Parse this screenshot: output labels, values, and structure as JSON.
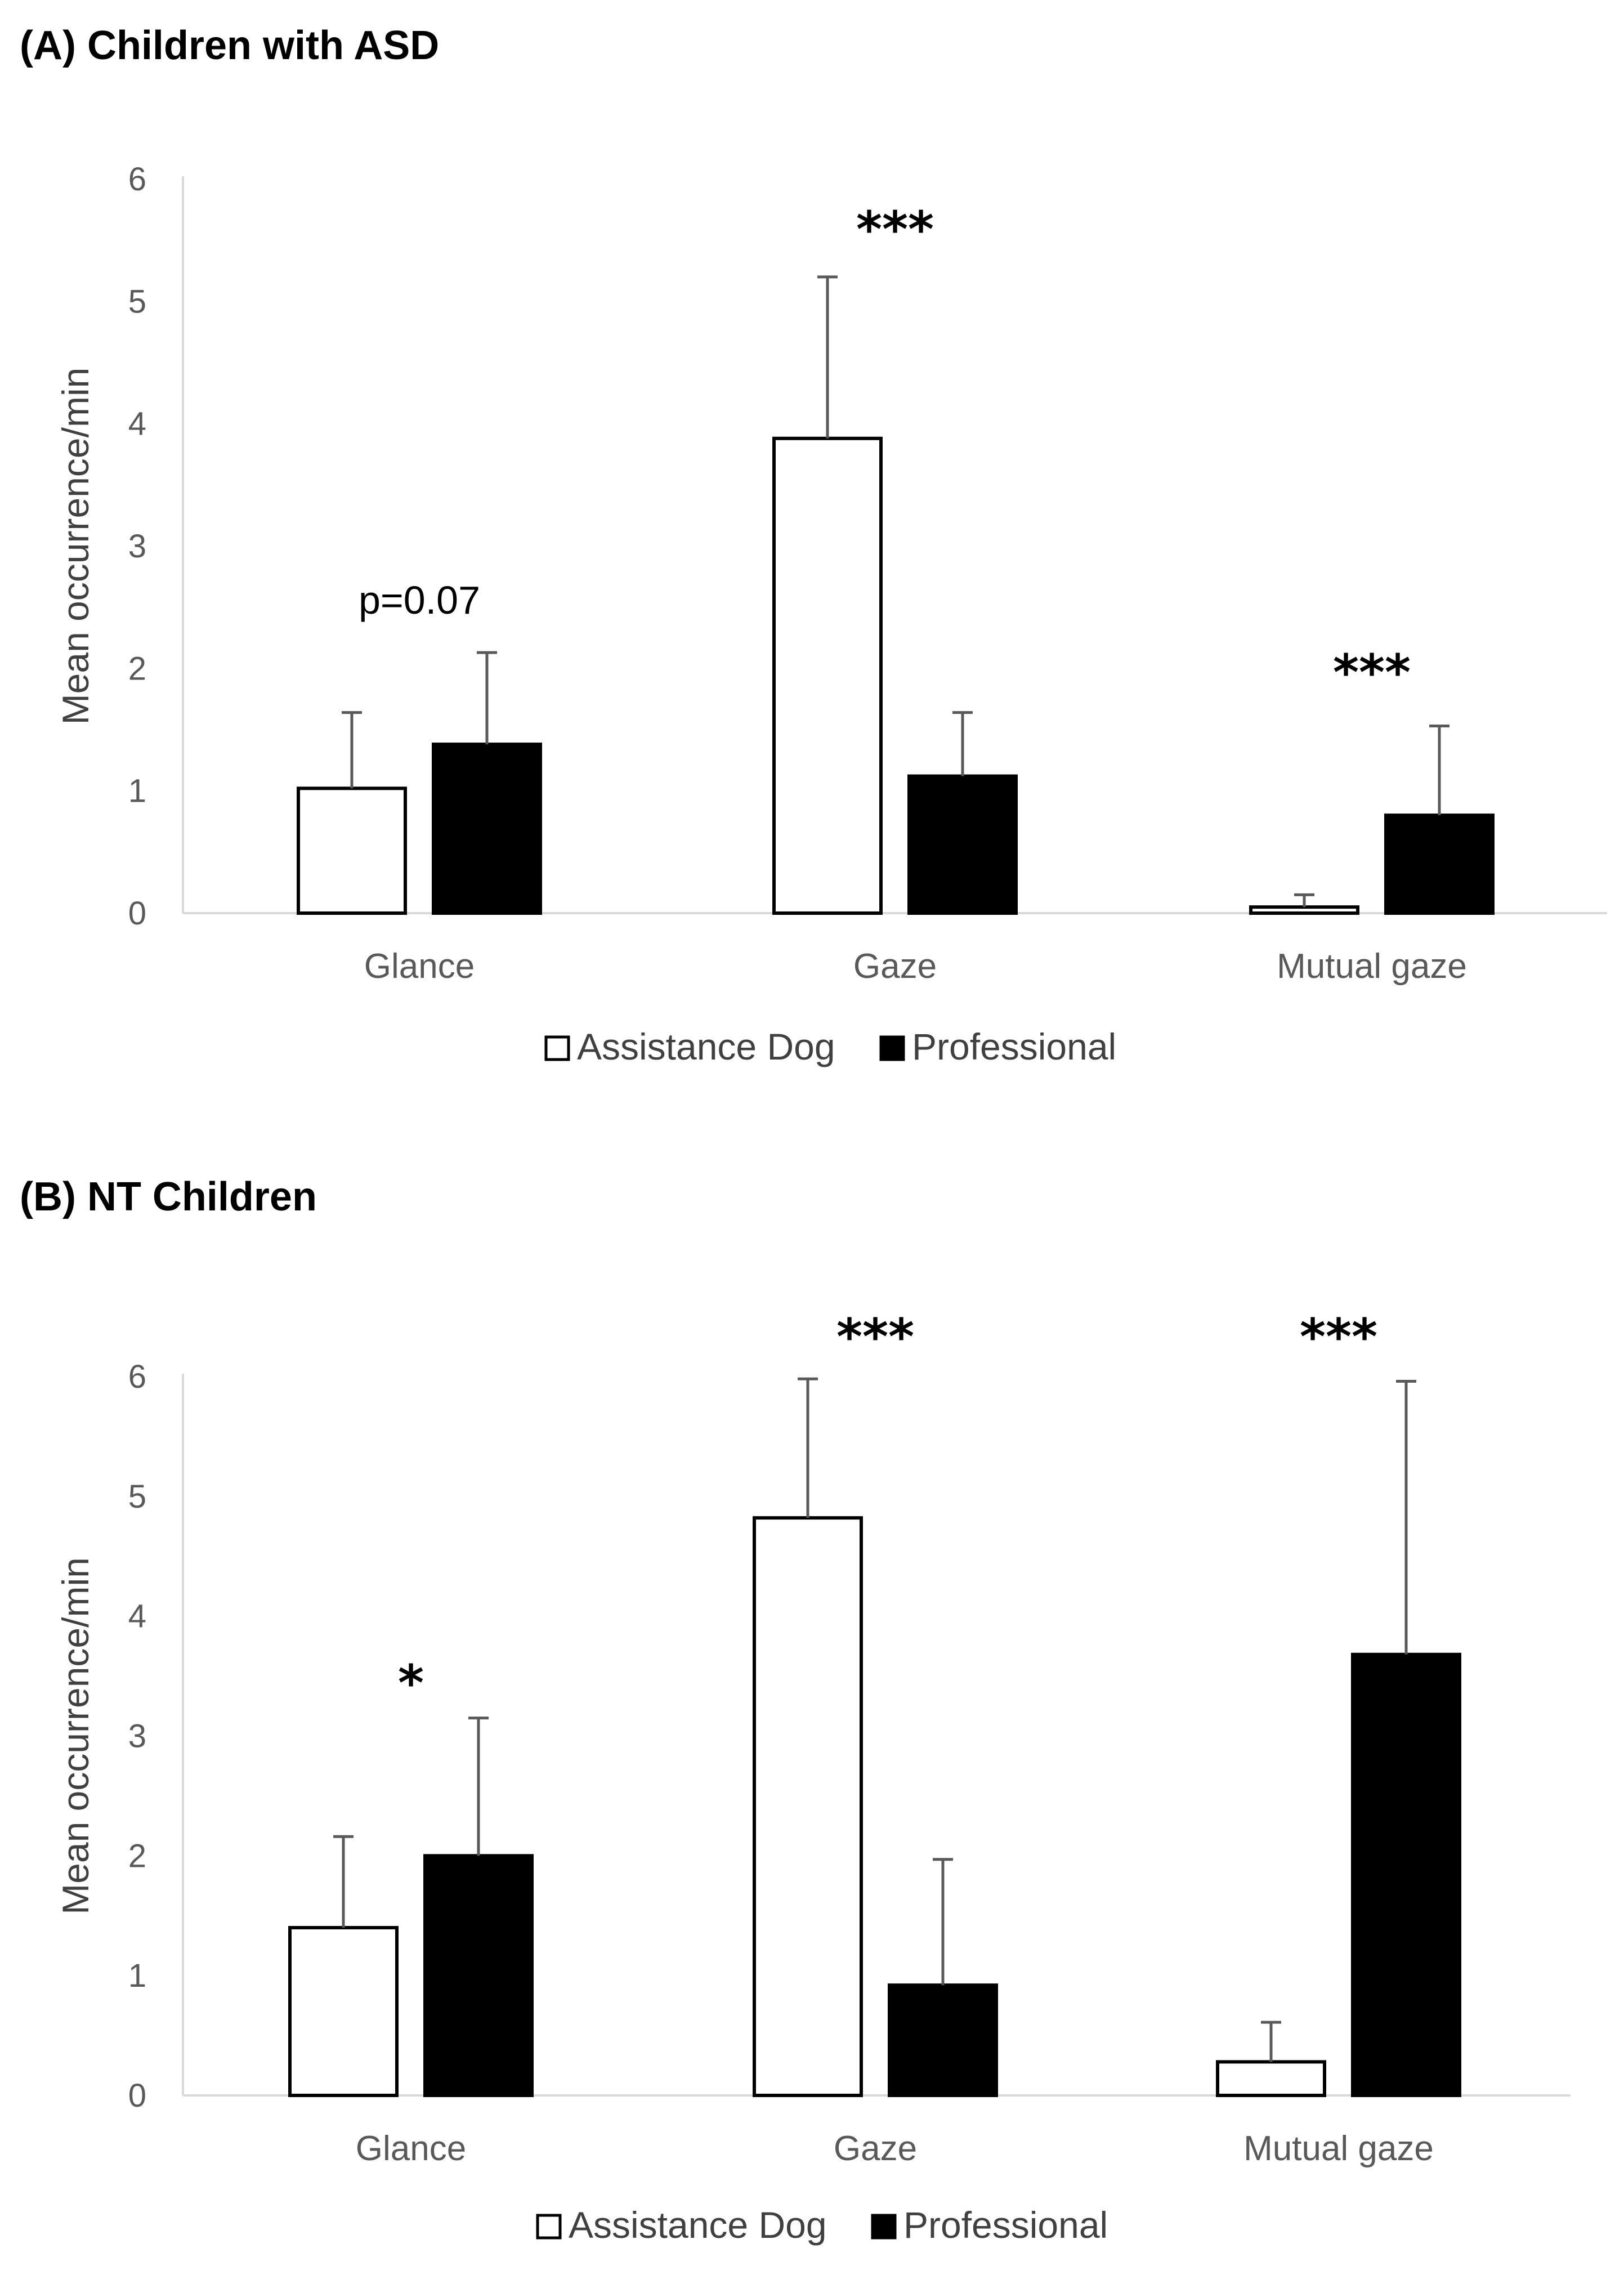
{
  "chart_data": [
    {
      "type": "bar",
      "title": "(A) Children with ASD",
      "ylabel": "Mean occurrence/min",
      "xlabel": "",
      "ylim": [
        0,
        6
      ],
      "yticks": [
        "0",
        "1",
        "2",
        "3",
        "4",
        "5",
        "6"
      ],
      "categories": [
        "Glance",
        "Gaze",
        "Mutual gaze"
      ],
      "series": [
        {
          "name": "Assistance Dog",
          "fill": "#ffffff",
          "values": [
            1.02,
            3.88,
            0.05
          ],
          "errors": [
            0.62,
            1.32,
            0.1
          ]
        },
        {
          "name": "Professional",
          "fill": "#000000",
          "values": [
            1.38,
            1.12,
            0.8
          ],
          "errors": [
            0.75,
            0.52,
            0.73
          ]
        }
      ],
      "annotations": [
        "p=0.07",
        "***",
        "***"
      ],
      "legend": "bottom"
    },
    {
      "type": "bar",
      "title": "(B) NT Children",
      "ylabel": "Mean occurrence/min",
      "xlabel": "",
      "ylim": [
        0,
        6
      ],
      "yticks": [
        "0",
        "1",
        "2",
        "3",
        "4",
        "5",
        "6"
      ],
      "categories": [
        "Glance",
        "Gaze",
        "Mutual gaze"
      ],
      "series": [
        {
          "name": "Assistance Dog",
          "fill": "#ffffff",
          "values": [
            1.4,
            4.82,
            0.28
          ],
          "errors": [
            0.76,
            1.16,
            0.33
          ]
        },
        {
          "name": "Professional",
          "fill": "#000000",
          "values": [
            2.0,
            0.92,
            3.68
          ],
          "errors": [
            1.15,
            1.05,
            2.28
          ]
        }
      ],
      "annotations": [
        "*",
        "***",
        "***"
      ],
      "legend": "bottom"
    }
  ]
}
